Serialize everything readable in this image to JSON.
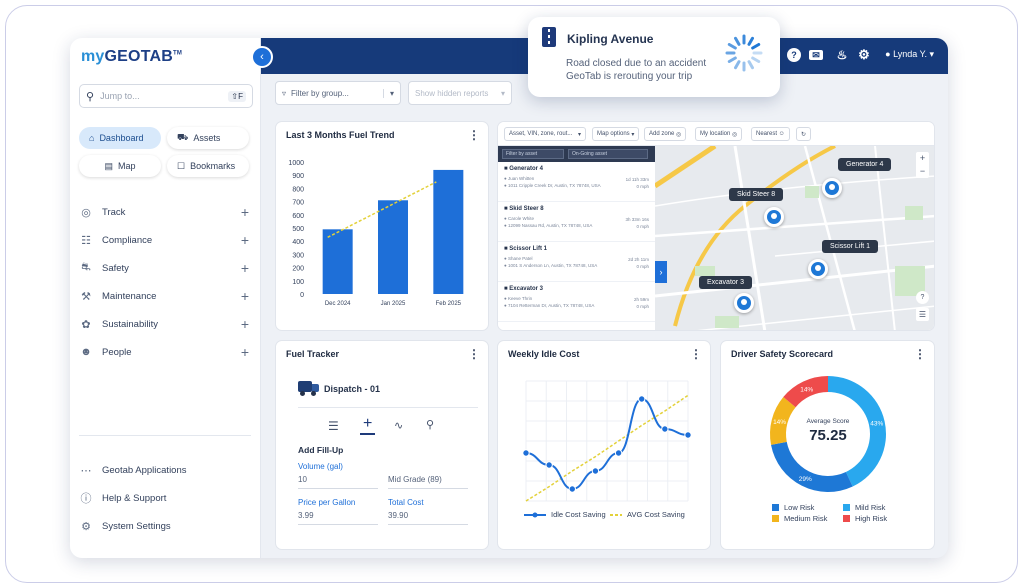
{
  "brand": {
    "logo_prefix": "my",
    "logo_main": "GEOTAB",
    "logo_tm": "TM"
  },
  "sidebar": {
    "search_placeholder": "Jump to...",
    "search_shortcut": "⇧F",
    "quick": [
      {
        "label": "Dashboard",
        "icon": "home-icon"
      },
      {
        "label": "Assets",
        "icon": "truck-icon"
      },
      {
        "label": "Map",
        "icon": "map-icon"
      },
      {
        "label": "Bookmarks",
        "icon": "bookmark-icon"
      }
    ],
    "nav": [
      {
        "label": "Track",
        "icon": "globe-icon"
      },
      {
        "label": "Compliance",
        "icon": "clipboard-icon"
      },
      {
        "label": "Safety",
        "icon": "safety-icon"
      },
      {
        "label": "Maintenance",
        "icon": "wrench-icon"
      },
      {
        "label": "Sustainability",
        "icon": "leaf-icon"
      },
      {
        "label": "People",
        "icon": "people-icon"
      }
    ],
    "bottom": [
      {
        "label": "Geotab Applications",
        "icon": "grid-icon"
      },
      {
        "label": "Help & Support",
        "icon": "help-icon"
      },
      {
        "label": "System Settings",
        "icon": "gear-icon"
      }
    ]
  },
  "toolbar": {
    "filter_placeholder": "Filter by group...",
    "hidden_reports": "Show hidden reports",
    "user": "Lynda Y."
  },
  "toast": {
    "title": "Kipling Avenue",
    "line1": "Road closed due to an accident",
    "line2": "GeoTab is rerouting your trip"
  },
  "fuel_trend": {
    "title": "Last 3 Months Fuel Trend",
    "chart_data": {
      "type": "bar",
      "categories": [
        "Dec 2024",
        "Jan 2025",
        "Feb 2025"
      ],
      "values": [
        490,
        710,
        940
      ],
      "trendline": true,
      "yticks": [
        0,
        100,
        200,
        300,
        400,
        500,
        600,
        700,
        800,
        900,
        1000
      ],
      "ylim": [
        0,
        1000
      ],
      "color": "#1e6fd8"
    }
  },
  "map": {
    "toolbar": [
      "Asset, VIN, zone, rout...",
      "Map options",
      "Add zone",
      "My location",
      "Nearest"
    ],
    "list_filters": [
      "Filter by asset",
      "On-Going asset"
    ],
    "assets": [
      {
        "name": "Generator 4",
        "driver": "Juan Whitten",
        "address": "1011 Cripple Creek Dr, Austin, TX 78748, USA",
        "time": "1d 11h 33m",
        "speed": "0 mph"
      },
      {
        "name": "Skid Steer 8",
        "driver": "Carole White",
        "address": "12099 Nassau Rd, Austin, TX 78748, USA",
        "time": "3h 33m 16s",
        "speed": "0 mph"
      },
      {
        "name": "Scissor Lift 1",
        "driver": "Shane Patel",
        "address": "1001 S Anderson Ln, Austin, TX 78748, USA",
        "time": "2d 2h 11m",
        "speed": "0 mph"
      },
      {
        "name": "Excavator 3",
        "driver": "Keeve Thrin",
        "address": "7104 Retterman Dr, Austin, TX 78748, USA",
        "time": "2h 59m",
        "speed": "0 mph"
      }
    ],
    "labels": [
      "Generator 4",
      "Skid Steer 8",
      "Scissor Lift 1",
      "Excavator 3"
    ]
  },
  "fuel_tracker": {
    "title": "Fuel Tracker",
    "vehicle": "Dispatch - 01",
    "section": "Add Fill-Up",
    "volume_label": "Volume (gal)",
    "volume_value": "10",
    "grade_value": "Mid Grade (89)",
    "price_label": "Price per Gallon",
    "price_value": "3.99",
    "total_label": "Total Cost",
    "total_value": "39.90"
  },
  "idle_cost": {
    "title": "Weekly Idle Cost",
    "chart_data": {
      "type": "line",
      "series": [
        {
          "name": "Idle Cost Saving",
          "values": [
            40,
            30,
            10,
            25,
            40,
            85,
            60,
            55
          ]
        },
        {
          "name": "AVG Cost Saving",
          "values": [
            0,
            12,
            25,
            37,
            50,
            63,
            75,
            88
          ]
        }
      ],
      "ylim": [
        0,
        100
      ],
      "grid": true
    },
    "legend1": "Idle Cost Saving",
    "legend2": "AVG Cost Saving"
  },
  "scorecard": {
    "title": "Driver Safety Scorecard",
    "center_label": "Average Score",
    "center_value": "75.25",
    "chart_data": {
      "type": "pie",
      "categories": [
        "Low Risk",
        "Mild Risk",
        "Medium Risk",
        "High Risk"
      ],
      "values": [
        29,
        43,
        14,
        14
      ],
      "colors": [
        "#1e78d6",
        "#29a8ee",
        "#f2b51d",
        "#ee4b4b"
      ]
    },
    "legend": [
      "Low Risk",
      "Mild Risk",
      "Medium Risk",
      "High Risk"
    ]
  }
}
